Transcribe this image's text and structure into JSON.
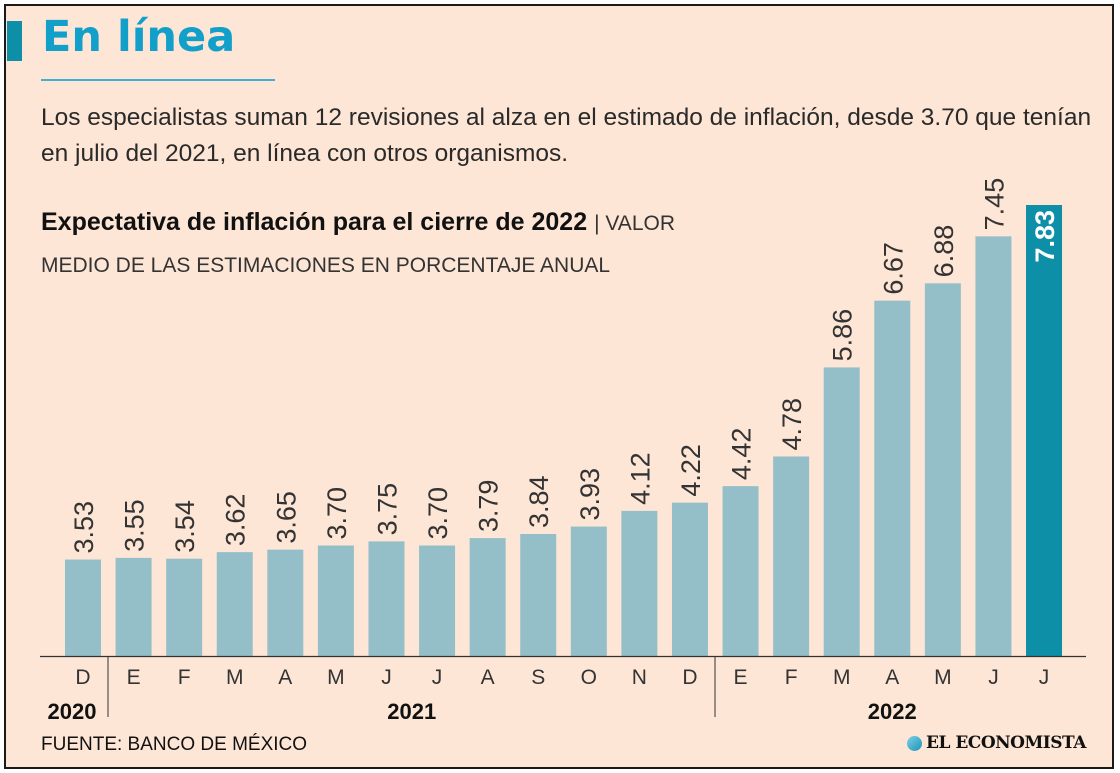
{
  "header": {
    "title": "En línea",
    "subtitle": "Los especialistas suman 12 revisiones al alza en el estimado de inflación, desde 3.70 que tenían en julio del 2021, en línea con otros organismos."
  },
  "colors": {
    "background": "#fde6d6",
    "title": "#12a0cb",
    "bar": "#95bfc8",
    "highlight_bar": "#0d8fa8",
    "accent": "#0d8fa8"
  },
  "chart_data": {
    "type": "bar",
    "title": "Expectativa de inflación para el cierre de 2022",
    "subtitle": "VALOR MEDIO DE LAS ESTIMACIONES EN PORCENTAJE ANUAL",
    "categories": [
      "D",
      "E",
      "F",
      "M",
      "A",
      "M",
      "J",
      "J",
      "A",
      "S",
      "O",
      "N",
      "D",
      "E",
      "F",
      "M",
      "A",
      "M",
      "J",
      "J"
    ],
    "year_groups": [
      {
        "label": "2020",
        "start": 0,
        "end": 0
      },
      {
        "label": "2021",
        "start": 1,
        "end": 12
      },
      {
        "label": "2022",
        "start": 13,
        "end": 19
      }
    ],
    "values": [
      3.53,
      3.55,
      3.54,
      3.62,
      3.65,
      3.7,
      3.75,
      3.7,
      3.79,
      3.84,
      3.93,
      4.12,
      4.22,
      4.42,
      4.78,
      5.86,
      6.67,
      6.88,
      7.45,
      7.83
    ],
    "data_labels": [
      "3.53",
      "3.55",
      "3.54",
      "3.62",
      "3.65",
      "3.70",
      "3.75",
      "3.70",
      "3.79",
      "3.84",
      "3.93",
      "4.12",
      "4.22",
      "4.42",
      "4.78",
      "5.86",
      "6.67",
      "6.88",
      "7.45",
      "7.83"
    ],
    "highlight_index": 19,
    "ylim": [
      2.36,
      7.83
    ],
    "grid": false,
    "xlabel": "",
    "ylabel": ""
  },
  "footer": {
    "source": "FUENTE: BANCO DE MÉXICO",
    "logo": "EL ECONOMISTA"
  }
}
